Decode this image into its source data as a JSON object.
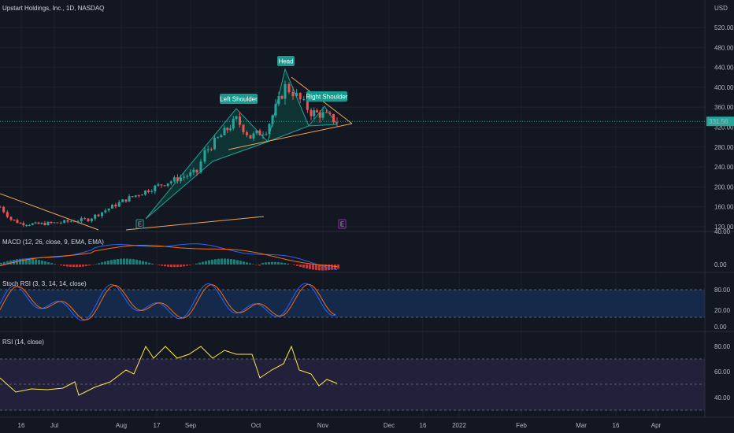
{
  "header": {
    "symbol_title": "Upstart Holdings, Inc., 1D, NASDAQ",
    "currency": "USD"
  },
  "colors": {
    "background": "#131722",
    "grid": "#1e222d",
    "up": "#26a69a",
    "down": "#ef5350",
    "triangle_fill": "#0f3a38",
    "triangle_stroke": "#22a39a",
    "trendline": "#f0a35a",
    "macd": "#2962ff",
    "signal": "#ff6d00",
    "stoch_k": "#2962ff",
    "stoch_d": "#ff6d00",
    "rsi": "#ffeb3b",
    "stoch_band": "#152a4a",
    "rsi_band": "#22203a",
    "last_price_bg": "#26a69a"
  },
  "chart_data": [
    {
      "type": "candlestick",
      "title": "Upstart Holdings, Inc., 1D, NASDAQ",
      "y_ticks": [
        "520.00",
        "480.00",
        "440.00",
        "400.00",
        "360.00",
        "320.00",
        "280.00",
        "240.00",
        "200.00",
        "160.00",
        "120.00"
      ],
      "last_price": "331.56",
      "x_ticks": [
        "16",
        "Jul",
        "Aug",
        "17",
        "Sep",
        "Oct",
        "Nov",
        "Dec",
        "16",
        "2022",
        "Feb",
        "Mar",
        "16",
        "Apr"
      ],
      "approx_close_path": [
        {
          "t": "Jun 4",
          "close": 160
        },
        {
          "t": "Jun 14",
          "close": 135
        },
        {
          "t": "Jun 25",
          "close": 127
        },
        {
          "t": "Jul 9",
          "close": 125
        },
        {
          "t": "Jul 23",
          "close": 128
        },
        {
          "t": "Aug 2",
          "close": 135
        },
        {
          "t": "Aug 10",
          "close": 175
        },
        {
          "t": "Aug 17",
          "close": 205
        },
        {
          "t": "Aug 27",
          "close": 230
        },
        {
          "t": "Sep 7",
          "close": 270
        },
        {
          "t": "Sep 17",
          "close": 310
        },
        {
          "t": "Sep 24",
          "close": 335
        },
        {
          "t": "Sep 30",
          "close": 300
        },
        {
          "t": "Oct 8",
          "close": 315
        },
        {
          "t": "Oct 15",
          "close": 401
        },
        {
          "t": "Oct 19",
          "close": 390
        },
        {
          "t": "Oct 26",
          "close": 350
        },
        {
          "t": "Nov 2",
          "close": 345
        },
        {
          "t": "Nov 8",
          "close": 331.56
        }
      ],
      "annotations": [
        "Left Shoulder",
        "Head",
        "Right Shoulder"
      ],
      "earnings_markers": [
        "E",
        "E"
      ]
    },
    {
      "type": "line",
      "title": "MACD (12, 26, close, 9, EMA, EMA)",
      "y_ticks": [
        "40.00",
        "0.00"
      ],
      "series": [
        {
          "name": "MACD"
        },
        {
          "name": "Signal"
        },
        {
          "name": "Histogram"
        }
      ]
    },
    {
      "type": "line",
      "title": "Stoch RSI (3, 3, 14, 14, close)",
      "y_ticks": [
        "80.00",
        "20.00",
        "0.00"
      ],
      "series": [
        {
          "name": "K"
        },
        {
          "name": "D"
        }
      ]
    },
    {
      "type": "line",
      "title": "RSI (14, close)",
      "y_ticks": [
        "80.00",
        "60.00",
        "40.00"
      ],
      "series": [
        {
          "name": "RSI"
        }
      ]
    }
  ]
}
